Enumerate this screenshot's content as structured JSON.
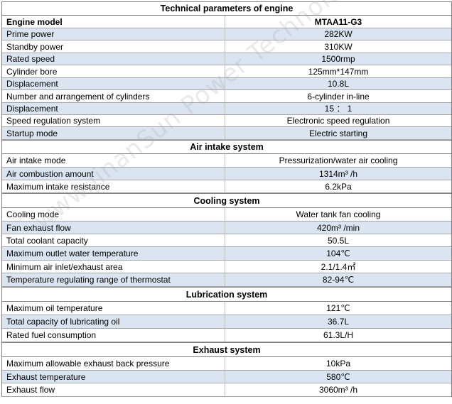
{
  "title": "Technical parameters of engine",
  "header": {
    "label": "Engine model",
    "value": "MTAA11-G3"
  },
  "engine_rows": [
    {
      "label": "Prime power",
      "value": "282KW"
    },
    {
      "label": "Standby power",
      "value": "310KW"
    },
    {
      "label": "Rated speed",
      "value": "1500rmp"
    },
    {
      "label": "Cylinder bore",
      "value": "125mm*147mm"
    },
    {
      "label": "Displacement",
      "value": "10.8L"
    },
    {
      "label": "Number and arrangement of cylinders",
      "value": "6-cylinder in-line"
    },
    {
      "label": "Displacement",
      "value": "15 ： 1"
    },
    {
      "label": "Speed regulation system",
      "value": "Electronic speed regulation"
    },
    {
      "label": "Startup mode",
      "value": "Electric starting"
    }
  ],
  "sections": [
    {
      "title": "Air intake system",
      "rows": [
        {
          "label": "Air intake mode",
          "value": "Pressurization/water air cooling"
        },
        {
          "label": "Air combustion amount",
          "value": "1314m³ /h"
        },
        {
          "label": "Maximum intake resistance",
          "value": "6.2kPa"
        }
      ]
    },
    {
      "title": "Cooling system",
      "rows": [
        {
          "label": "Cooling mode",
          "value": "Water tank fan cooling"
        },
        {
          "label": "Fan exhaust flow",
          "value": "420m³  /min"
        },
        {
          "label": "Total coolant capacity",
          "value": "50.5L"
        },
        {
          "label": "Maximum outlet water temperature",
          "value": "104℃"
        },
        {
          "label": "Minimum air inlet/exhaust area",
          "value": "2.1/1.4㎡"
        },
        {
          "label": "Temperature regulating range of thermostat",
          "value": "82-94℃"
        }
      ]
    },
    {
      "title": "Lubrication system",
      "rows": [
        {
          "label": "Maximum oil temperature",
          "value": "121℃"
        },
        {
          "label": "Total capacity of lubricating oil",
          "value": "36.7L"
        },
        {
          "label": "Rated fuel consumption",
          "value": "61.3L/H"
        }
      ]
    },
    {
      "title": "Exhaust system",
      "rows": [
        {
          "label": "Maximum allowable exhaust back pressure",
          "value": "10kPa"
        },
        {
          "label": "Exhaust temperature",
          "value": "580℃"
        },
        {
          "label": "Exhaust flow",
          "value": "3060m³ /h"
        }
      ]
    }
  ],
  "watermark": "www.JinanSun Power Technology Co.,Ltd."
}
